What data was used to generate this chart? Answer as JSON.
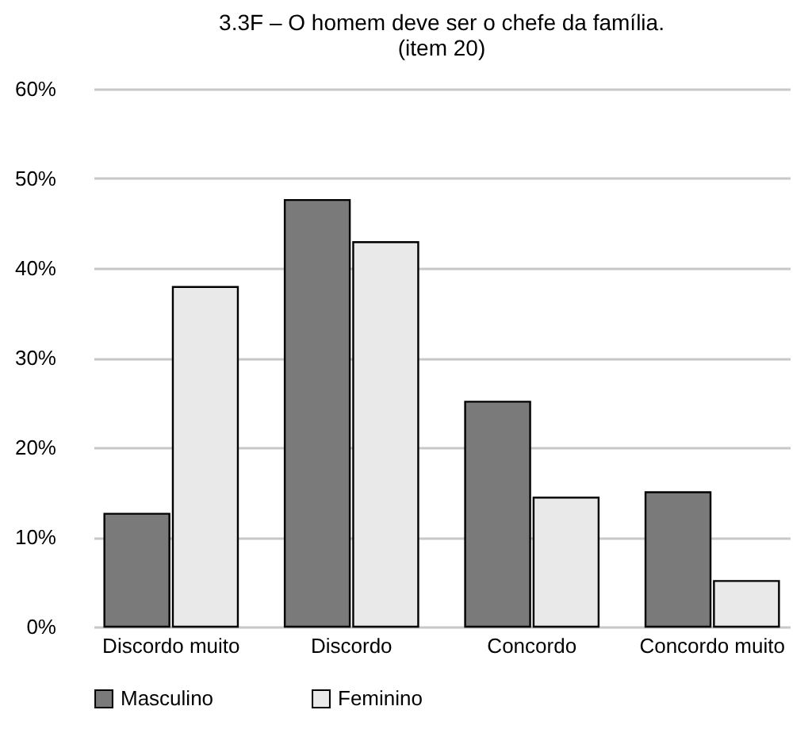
{
  "chart_data": {
    "type": "bar",
    "title": "3.3F – O homem deve ser o chefe da família. (item 20)",
    "categories": [
      "Discordo muito",
      "Discordo",
      "Concordo",
      "Concordo muito"
    ],
    "series": [
      {
        "name": "Masculino",
        "color": "#7a7a7a",
        "values": [
          12.6,
          47.6,
          25.1,
          15.0
        ]
      },
      {
        "name": "Feminino",
        "color": "#e9e9e9",
        "values": [
          37.9,
          42.9,
          14.4,
          5.1
        ]
      }
    ],
    "ylim": [
      0,
      60
    ],
    "yticks": [
      {
        "value": 0,
        "label": "0%"
      },
      {
        "value": 10,
        "label": "10%"
      },
      {
        "value": 20,
        "label": "20%"
      },
      {
        "value": 30,
        "label": "30%"
      },
      {
        "value": 40,
        "label": "40%"
      },
      {
        "value": 50,
        "label": "50%"
      },
      {
        "value": 60,
        "label": "60%"
      }
    ],
    "grid": "y",
    "legend": "bottom"
  }
}
